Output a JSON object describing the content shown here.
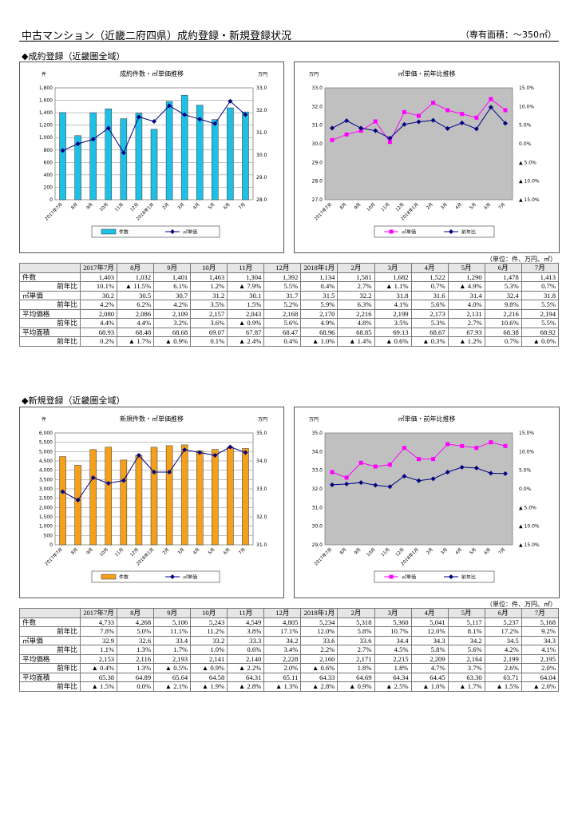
{
  "header": {
    "title": "中古マンション（近畿二府四県）成約登録・新規登録状況",
    "right": "（専有面積：～350㎡）"
  },
  "sections": {
    "seiyaku": "◆成約登録（近畿圏全域）",
    "shinki": "◆新規登録（近畿圏全域）"
  },
  "unit_note": "（単位：件、万円、㎡）",
  "months": [
    "2017年7月",
    "8月",
    "9月",
    "10月",
    "11月",
    "12月",
    "2018年1月",
    "2月",
    "3月",
    "4月",
    "5月",
    "6月",
    "7月"
  ],
  "chart_months": [
    "2017年7月",
    "8月",
    "9月",
    "10月",
    "11月",
    "12月",
    "2018年1月",
    "2月",
    "3月",
    "4月",
    "5月",
    "6月",
    "7月"
  ],
  "row_labels": {
    "count": "件数",
    "unit_price": "㎡単価",
    "avg_price": "平均価格",
    "avg_area": "平均面積",
    "yoy": "前年比"
  },
  "colors": {
    "seiyaku_bar": "#1ec0e6",
    "shinki_bar": "#f5a01a",
    "line_navy": "#000080",
    "line_magenta": "#ff00ff",
    "plot_bg": "#c0c0c0"
  },
  "chart_data": [
    {
      "type": "bar",
      "title": "成約件数・㎡単価推移",
      "left_unit": "件",
      "right_unit": "万円",
      "ylim": [
        0,
        1800
      ],
      "yticks": [
        "0",
        "200",
        "400",
        "600",
        "800",
        "1,000",
        "1,200",
        "1,400",
        "1,600",
        "1,800"
      ],
      "y2lim": [
        28.0,
        33.0
      ],
      "y2ticks": [
        "28.0",
        "29.0",
        "30.0",
        "31.0",
        "32.0",
        "33.0"
      ],
      "series": [
        {
          "name": "件数",
          "kind": "bar",
          "axis": "left",
          "values": [
            1403,
            1032,
            1401,
            1463,
            1304,
            1392,
            1134,
            1581,
            1682,
            1522,
            1290,
            1478,
            1413
          ]
        },
        {
          "name": "㎡単価",
          "kind": "line",
          "axis": "right",
          "values": [
            30.2,
            30.5,
            30.7,
            31.2,
            30.1,
            31.7,
            31.5,
            32.2,
            31.8,
            31.6,
            31.4,
            32.4,
            31.8
          ]
        }
      ],
      "legend": "bottom"
    },
    {
      "type": "line",
      "title": "㎡単価・前年比推移",
      "left_unit": "万円",
      "right_unit": "",
      "ylim": [
        27.0,
        33.0
      ],
      "yticks": [
        "27.0",
        "28.0",
        "29.0",
        "30.0",
        "31.0",
        "32.0",
        "33.0"
      ],
      "y2lim": [
        -15,
        15
      ],
      "y2ticks": [
        "▲ 15.0%",
        "▲ 10.0%",
        "▲ 5.0%",
        "0.0%",
        "5.0%",
        "10.0%",
        "15.0%"
      ],
      "series": [
        {
          "name": "㎡単価",
          "kind": "line",
          "axis": "left",
          "values": [
            30.2,
            30.5,
            30.7,
            31.2,
            30.1,
            31.7,
            31.5,
            32.2,
            31.8,
            31.6,
            31.4,
            32.4,
            31.8
          ]
        },
        {
          "name": "前年比",
          "kind": "line",
          "axis": "right",
          "values": [
            4.2,
            6.2,
            4.2,
            3.5,
            1.5,
            5.2,
            5.9,
            6.3,
            4.1,
            5.6,
            4.0,
            9.8,
            5.5
          ]
        }
      ],
      "legend": "bottom"
    },
    {
      "type": "bar",
      "title": "新規件数・㎡単価推移",
      "left_unit": "件",
      "right_unit": "万円",
      "ylim": [
        0,
        6000
      ],
      "yticks": [
        "0",
        "500",
        "1,000",
        "1,500",
        "2,000",
        "2,500",
        "3,000",
        "3,500",
        "4,000",
        "4,500",
        "5,000",
        "5,500",
        "6,000"
      ],
      "y2lim": [
        31.0,
        35.0
      ],
      "y2ticks": [
        "31.0",
        "32.0",
        "33.0",
        "34.0",
        "35.0"
      ],
      "series": [
        {
          "name": "件数",
          "kind": "bar",
          "axis": "left",
          "values": [
            4733,
            4268,
            5106,
            5243,
            4549,
            4805,
            5234,
            5318,
            5360,
            5041,
            5117,
            5237,
            5168
          ]
        },
        {
          "name": "㎡単価",
          "kind": "line",
          "axis": "right",
          "values": [
            32.9,
            32.6,
            33.4,
            33.2,
            33.3,
            34.2,
            33.6,
            33.6,
            34.4,
            34.3,
            34.2,
            34.5,
            34.3
          ]
        }
      ],
      "legend": "bottom"
    },
    {
      "type": "line",
      "title": "㎡単価・前年比推移",
      "left_unit": "万円",
      "right_unit": "",
      "ylim": [
        29.0,
        35.0
      ],
      "yticks": [
        "29.0",
        "30.0",
        "31.0",
        "32.0",
        "33.0",
        "34.0",
        "35.0"
      ],
      "y2lim": [
        -15,
        15
      ],
      "y2ticks": [
        "▲ 15.0%",
        "▲ 10.0%",
        "▲ 5.0%",
        "0.0%",
        "5.0%",
        "10.0%",
        "15.0%"
      ],
      "series": [
        {
          "name": "㎡単価",
          "kind": "line",
          "axis": "left",
          "values": [
            32.9,
            32.6,
            33.4,
            33.2,
            33.3,
            34.2,
            33.6,
            33.6,
            34.4,
            34.3,
            34.2,
            34.5,
            34.3
          ]
        },
        {
          "name": "前年比",
          "kind": "line",
          "axis": "right",
          "values": [
            1.1,
            1.3,
            1.7,
            1.0,
            0.6,
            3.4,
            2.2,
            2.7,
            4.5,
            5.8,
            5.6,
            4.2,
            4.1
          ]
        }
      ],
      "legend": "bottom"
    }
  ],
  "table_seiyaku": [
    {
      "label": "件数",
      "sub": false,
      "values": [
        "1,403",
        "1,032",
        "1,401",
        "1,463",
        "1,304",
        "1,392",
        "1,134",
        "1,581",
        "1,682",
        "1,522",
        "1,290",
        "1,478",
        "1,413"
      ]
    },
    {
      "label": "前年比",
      "sub": true,
      "values": [
        "10.1%",
        "▲ 11.5%",
        "6.1%",
        "1.2%",
        "▲ 7.9%",
        "5.5%",
        "0.4%",
        "2.7%",
        "▲ 1.1%",
        "0.7%",
        "▲ 4.9%",
        "5.3%",
        "0.7%"
      ]
    },
    {
      "label": "㎡単価",
      "sub": false,
      "values": [
        "30.2",
        "30.5",
        "30.7",
        "31.2",
        "30.1",
        "31.7",
        "31.5",
        "32.2",
        "31.8",
        "31.6",
        "31.4",
        "32.4",
        "31.8"
      ]
    },
    {
      "label": "前年比",
      "sub": true,
      "values": [
        "4.2%",
        "6.2%",
        "4.2%",
        "3.5%",
        "1.5%",
        "5.2%",
        "5.9%",
        "6.3%",
        "4.1%",
        "5.6%",
        "4.0%",
        "9.8%",
        "5.5%"
      ]
    },
    {
      "label": "平均価格",
      "sub": false,
      "values": [
        "2,080",
        "2,086",
        "2,109",
        "2,157",
        "2,043",
        "2,168",
        "2,170",
        "2,216",
        "2,199",
        "2,173",
        "2,131",
        "2,216",
        "2,194"
      ]
    },
    {
      "label": "前年比",
      "sub": true,
      "values": [
        "4.4%",
        "4.4%",
        "3.2%",
        "3.6%",
        "▲ 0.9%",
        "5.6%",
        "4.9%",
        "4.8%",
        "3.5%",
        "5.3%",
        "2.7%",
        "10.6%",
        "5.5%"
      ]
    },
    {
      "label": "平均面積",
      "sub": false,
      "values": [
        "68.93",
        "68.48",
        "68.68",
        "69.07",
        "67.87",
        "68.47",
        "68.96",
        "68.85",
        "69.13",
        "68.67",
        "67.93",
        "68.38",
        "68.92"
      ]
    },
    {
      "label": "前年比",
      "sub": true,
      "values": [
        "0.2%",
        "▲ 1.7%",
        "▲ 0.9%",
        "0.1%",
        "▲ 2.4%",
        "0.4%",
        "▲ 1.0%",
        "▲ 1.4%",
        "▲ 0.6%",
        "▲ 0.3%",
        "▲ 1.2%",
        "0.7%",
        "▲ 0.0%"
      ]
    }
  ],
  "table_shinki": [
    {
      "label": "件数",
      "sub": false,
      "values": [
        "4,733",
        "4,268",
        "5,106",
        "5,243",
        "4,549",
        "4,805",
        "5,234",
        "5,318",
        "5,360",
        "5,041",
        "5,117",
        "5,237",
        "5,168"
      ]
    },
    {
      "label": "前年比",
      "sub": true,
      "values": [
        "7.8%",
        "5.0%",
        "11.1%",
        "11.2%",
        "3.8%",
        "17.1%",
        "12.0%",
        "5.8%",
        "10.7%",
        "12.0%",
        "8.1%",
        "17.2%",
        "9.2%"
      ]
    },
    {
      "label": "㎡単価",
      "sub": false,
      "values": [
        "32.9",
        "32.6",
        "33.4",
        "33.2",
        "33.3",
        "34.2",
        "33.6",
        "33.6",
        "34.4",
        "34.3",
        "34.2",
        "34.5",
        "34.3"
      ]
    },
    {
      "label": "前年比",
      "sub": true,
      "values": [
        "1.1%",
        "1.3%",
        "1.7%",
        "1.0%",
        "0.6%",
        "3.4%",
        "2.2%",
        "2.7%",
        "4.5%",
        "5.8%",
        "5.6%",
        "4.2%",
        "4.1%"
      ]
    },
    {
      "label": "平均価格",
      "sub": false,
      "values": [
        "2,153",
        "2,116",
        "2,193",
        "2,141",
        "2,140",
        "2,228",
        "2,160",
        "2,171",
        "2,215",
        "2,209",
        "2,164",
        "2,199",
        "2,195"
      ]
    },
    {
      "label": "前年比",
      "sub": true,
      "values": [
        "▲ 0.4%",
        "1.3%",
        "▲ 0.5%",
        "▲ 0.9%",
        "▲ 2.2%",
        "2.0%",
        "▲ 0.6%",
        "1.8%",
        "1.8%",
        "4.7%",
        "3.7%",
        "2.6%",
        "2.0%"
      ]
    },
    {
      "label": "平均面積",
      "sub": false,
      "values": [
        "65.38",
        "64.89",
        "65.64",
        "64.58",
        "64.31",
        "65.11",
        "64.33",
        "64.69",
        "64.34",
        "64.45",
        "63.30",
        "63.71",
        "64.04"
      ]
    },
    {
      "label": "前年比",
      "sub": true,
      "values": [
        "▲ 1.5%",
        "0.0%",
        "▲ 2.1%",
        "▲ 1.9%",
        "▲ 2.8%",
        "▲ 1.3%",
        "▲ 2.8%",
        "▲ 0.9%",
        "▲ 2.5%",
        "▲ 1.0%",
        "▲ 1.7%",
        "▲ 1.5%",
        "▲ 2.0%"
      ]
    }
  ]
}
